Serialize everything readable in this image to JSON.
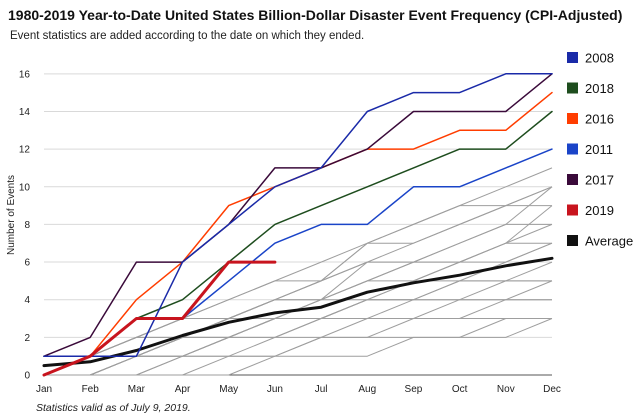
{
  "title": "1980-2019 Year-to-Date United States Billion-Dollar Disaster Event Frequency (CPI-Adjusted)",
  "subtitle": "Event statistics are added according to the date on which they ended.",
  "footnote": "Statistics valid as of July 9, 2019.",
  "chart_data": {
    "type": "line",
    "ylabel": "Number of Events",
    "xlabel": "",
    "ylim": [
      0,
      17
    ],
    "yticks": [
      0,
      2,
      4,
      6,
      8,
      10,
      12,
      14,
      16
    ],
    "grid": true,
    "legend_position": "right",
    "categories": [
      "Jan",
      "Feb",
      "Mar",
      "Apr",
      "May",
      "Jun",
      "Jul",
      "Aug",
      "Sep",
      "Oct",
      "Nov",
      "Dec"
    ],
    "highlight_series": [
      {
        "name": "2008",
        "color": "#1a2aa8",
        "width": 1.5,
        "values": [
          1,
          1,
          1,
          6,
          8,
          10,
          11,
          14,
          15,
          15,
          16,
          16
        ]
      },
      {
        "name": "2018",
        "color": "#1e4d1e",
        "width": 1.5,
        "values": [
          1,
          1,
          3,
          4,
          6,
          8,
          9,
          10,
          11,
          12,
          12,
          14
        ]
      },
      {
        "name": "2016",
        "color": "#ff3d00",
        "width": 1.5,
        "values": [
          0,
          1,
          4,
          6,
          9,
          10,
          11,
          12,
          12,
          13,
          13,
          15
        ]
      },
      {
        "name": "2011",
        "color": "#1a44c8",
        "width": 1.5,
        "values": [
          1,
          1,
          3,
          3,
          5,
          7,
          8,
          8,
          10,
          10,
          11,
          12
        ]
      },
      {
        "name": "2017",
        "color": "#3a0a3a",
        "width": 1.5,
        "values": [
          1,
          2,
          6,
          6,
          8,
          11,
          11,
          12,
          14,
          14,
          14,
          16
        ]
      },
      {
        "name": "2019",
        "color": "#c8141e",
        "width": 3,
        "values": [
          0,
          1,
          3,
          3,
          6,
          6
        ]
      },
      {
        "name": "Average",
        "color": "#111111",
        "width": 3,
        "values": [
          0.5,
          0.7,
          1.3,
          2.1,
          2.8,
          3.3,
          3.6,
          4.4,
          4.9,
          5.3,
          5.8,
          6.2
        ]
      }
    ],
    "background_series_color": "#9e9e9e",
    "background_series": [
      [
        0,
        0,
        0,
        0,
        1,
        1,
        2,
        2,
        3,
        3,
        3,
        3
      ],
      [
        0,
        0,
        0,
        1,
        1,
        1,
        2,
        2,
        2,
        2,
        3,
        3
      ],
      [
        0,
        0,
        0,
        0,
        0,
        1,
        1,
        1,
        2,
        2,
        2,
        3
      ],
      [
        0,
        0,
        1,
        1,
        1,
        2,
        2,
        3,
        3,
        3,
        4,
        4
      ],
      [
        0,
        0,
        0,
        1,
        2,
        2,
        3,
        3,
        4,
        4,
        4,
        5
      ],
      [
        0,
        1,
        1,
        1,
        2,
        3,
        3,
        4,
        4,
        4,
        5,
        5
      ],
      [
        0,
        0,
        1,
        2,
        2,
        2,
        3,
        3,
        3,
        4,
        4,
        4
      ],
      [
        0,
        1,
        1,
        2,
        3,
        3,
        4,
        4,
        5,
        5,
        5,
        5
      ],
      [
        1,
        1,
        1,
        2,
        2,
        3,
        3,
        4,
        4,
        5,
        5,
        6
      ],
      [
        0,
        0,
        1,
        1,
        2,
        3,
        4,
        5,
        5,
        6,
        6,
        7
      ],
      [
        0,
        1,
        2,
        2,
        3,
        4,
        4,
        5,
        6,
        6,
        7,
        7
      ],
      [
        0,
        0,
        1,
        2,
        3,
        3,
        4,
        6,
        6,
        7,
        8,
        8
      ],
      [
        1,
        1,
        2,
        2,
        3,
        4,
        5,
        6,
        6,
        6,
        7,
        8
      ],
      [
        0,
        1,
        2,
        3,
        3,
        4,
        5,
        7,
        7,
        8,
        9,
        9
      ],
      [
        0,
        1,
        1,
        2,
        3,
        4,
        5,
        6,
        7,
        8,
        9,
        10
      ],
      [
        1,
        1,
        2,
        3,
        4,
        5,
        5,
        7,
        8,
        9,
        9,
        10
      ],
      [
        0,
        1,
        2,
        3,
        4,
        5,
        6,
        7,
        8,
        9,
        10,
        11
      ],
      [
        0,
        0,
        1,
        2,
        3,
        4,
        4,
        5,
        6,
        7,
        8,
        10
      ],
      [
        0,
        0,
        1,
        1,
        2,
        3,
        3,
        4,
        5,
        6,
        7,
        9
      ],
      [
        0,
        1,
        1,
        2,
        2,
        3,
        3,
        4,
        4,
        5,
        6,
        7
      ]
    ]
  }
}
